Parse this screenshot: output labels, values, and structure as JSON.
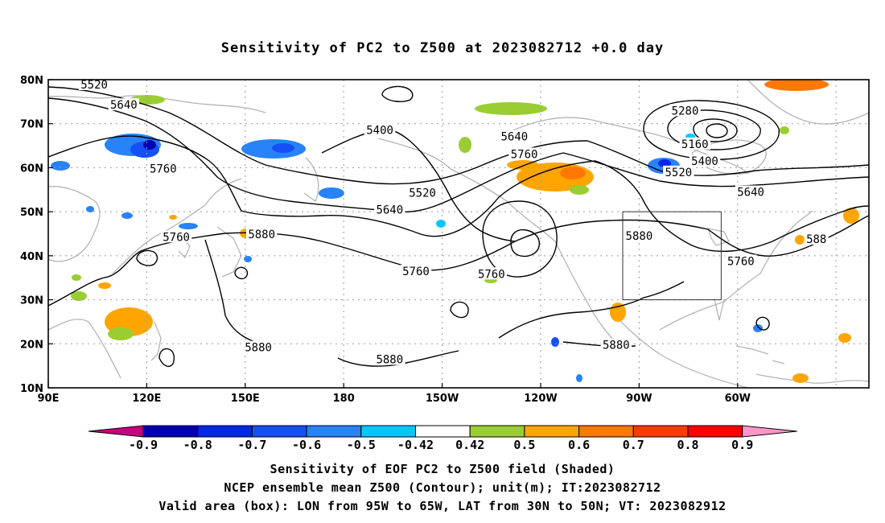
{
  "title": "Sensitivity of PC2 to Z500 at 2023082712 +0.0 day",
  "map": {
    "lat_labels": [
      "80N",
      "70N",
      "60N",
      "50N",
      "40N",
      "30N",
      "20N",
      "10N"
    ],
    "lon_labels": [
      "90E",
      "120E",
      "150E",
      "180",
      "150W",
      "120W",
      "90W",
      "60W"
    ],
    "contour_labels": [
      {
        "text": "5520",
        "lon": 104,
        "lat": 78.9
      },
      {
        "text": "5640",
        "lon": 113,
        "lat": 74.3
      },
      {
        "text": "5760",
        "lon": 125,
        "lat": 59.8
      },
      {
        "text": "5760",
        "lon": 129,
        "lat": 44.3
      },
      {
        "text": "5880",
        "lon": 155,
        "lat": 44.9
      },
      {
        "text": "5400",
        "lon": 191,
        "lat": 68.6
      },
      {
        "text": "5520",
        "lon": 204,
        "lat": 54.3
      },
      {
        "text": "5640",
        "lon": 194,
        "lat": 50.5
      },
      {
        "text": "5760",
        "lon": 202,
        "lat": 36.5
      },
      {
        "text": "5760",
        "lon": 225,
        "lat": 35.9
      },
      {
        "text": "5640",
        "lon": 232,
        "lat": 67.1
      },
      {
        "text": "5760",
        "lon": 235,
        "lat": 63.1
      },
      {
        "text": "5880",
        "lon": 270,
        "lat": 44.5
      },
      {
        "text": "5880",
        "lon": 263,
        "lat": 19.8
      },
      {
        "text": "5880",
        "lon": 154,
        "lat": 19.2
      },
      {
        "text": "5880",
        "lon": 194,
        "lat": 16.5
      },
      {
        "text": "5280",
        "lon": 284,
        "lat": 73.0
      },
      {
        "text": "5160",
        "lon": 287,
        "lat": 65.4
      },
      {
        "text": "5400",
        "lon": 290,
        "lat": 61.5
      },
      {
        "text": "5520",
        "lon": 282,
        "lat": 59.0
      },
      {
        "text": "5640",
        "lon": 304,
        "lat": 54.5
      },
      {
        "text": "5760",
        "lon": 301,
        "lat": 38.8
      },
      {
        "text": "588",
        "lon": 324,
        "lat": 43.8
      }
    ],
    "valid_box": {
      "lon_min": 265,
      "lon_max": 295,
      "lat_min": 30,
      "lat_max": 50
    },
    "colors": {
      "contour": "#000000",
      "coast": "#b4b4b4",
      "grid": "#999999",
      "box": "#333333"
    }
  },
  "colorbar": {
    "tick_labels": [
      "-0.9",
      "-0.8",
      "-0.7",
      "-0.6",
      "-0.5",
      "-0.42",
      "0.42",
      "0.5",
      "0.6",
      "0.7",
      "0.8",
      "0.9"
    ],
    "colors": [
      "#c8007f",
      "#0000b4",
      "#0028e6",
      "#1450f5",
      "#2882fa",
      "#00c8ff",
      "#ffffff",
      "#9acd32",
      "#ffa500",
      "#ff7800",
      "#ff3c00",
      "#ff0000",
      "#ff96c8"
    ]
  },
  "captions": {
    "line1": "Sensitivity of EOF PC2 to Z500 field (Shaded)",
    "line2": "NCEP ensemble mean Z500 (Contour); unit(m); IT:2023082712",
    "line3": "Valid area (box): LON from 95W to 65W, LAT from 30N to 50N; VT: 2023082912"
  }
}
